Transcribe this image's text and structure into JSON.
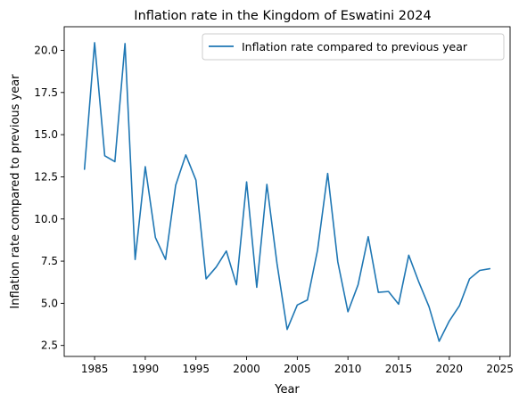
{
  "chart_data": {
    "type": "line",
    "title": "Inflation rate in the Kingdom of Eswatini 2024",
    "xlabel": "Year",
    "ylabel": "Inflation rate compared to previous year",
    "xlim": [
      1982,
      2026
    ],
    "ylim": [
      1.85,
      21.4
    ],
    "xticks": [
      1985,
      1990,
      1995,
      2000,
      2005,
      2010,
      2015,
      2020,
      2025
    ],
    "xtick_labels": [
      "1985",
      "1990",
      "1995",
      "2000",
      "2005",
      "2010",
      "2015",
      "2020",
      "2025"
    ],
    "yticks": [
      2.5,
      5.0,
      7.5,
      10.0,
      12.5,
      15.0,
      17.5,
      20.0
    ],
    "ytick_labels": [
      "2.5",
      "5.0",
      "7.5",
      "10.0",
      "12.5",
      "15.0",
      "17.5",
      "20.0"
    ],
    "grid": false,
    "legend_position": "top-right",
    "colors": {
      "series": "#1f77b4"
    },
    "series": [
      {
        "name": "Inflation rate compared to previous year",
        "x": [
          1984,
          1985,
          1986,
          1987,
          1988,
          1989,
          1990,
          1991,
          1992,
          1993,
          1994,
          1995,
          1996,
          1997,
          1998,
          1999,
          2000,
          2001,
          2002,
          2003,
          2004,
          2005,
          2006,
          2007,
          2008,
          2009,
          2010,
          2011,
          2012,
          2013,
          2014,
          2015,
          2016,
          2017,
          2018,
          2019,
          2020,
          2021,
          2022,
          2023,
          2024
        ],
        "values": [
          12.95,
          20.45,
          13.75,
          13.4,
          20.4,
          7.6,
          13.1,
          8.9,
          7.6,
          12.0,
          13.8,
          12.3,
          6.45,
          7.15,
          8.1,
          6.1,
          12.2,
          5.95,
          12.05,
          7.35,
          3.45,
          4.9,
          5.2,
          8.15,
          12.7,
          7.45,
          4.5,
          6.1,
          8.95,
          5.65,
          5.7,
          4.95,
          7.85,
          6.25,
          4.8,
          2.75,
          3.95,
          4.85,
          6.45,
          6.95,
          7.05
        ]
      }
    ]
  }
}
